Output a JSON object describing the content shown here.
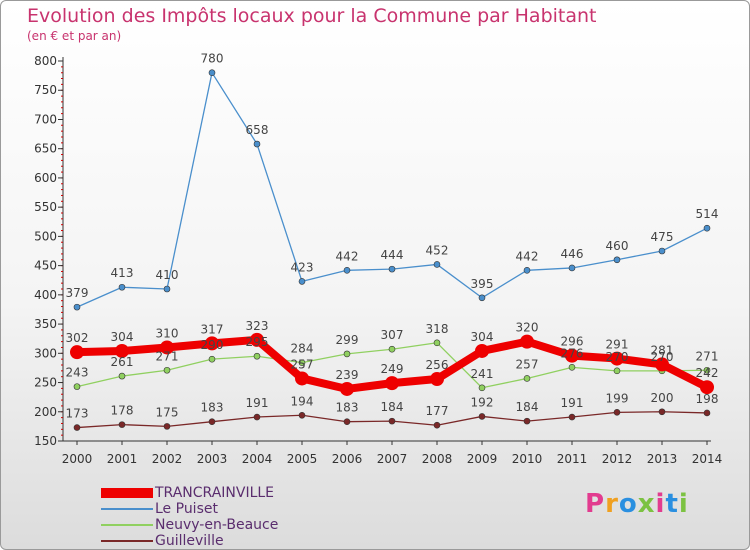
{
  "header": {
    "title": "Evolution des Impôts locaux pour la Commune par Habitant",
    "subtitle": "(en € et par an)"
  },
  "brand": {
    "text": "Proxiti",
    "letters": [
      {
        "ch": "P",
        "color": "#e23b8f"
      },
      {
        "ch": "r",
        "color": "#f0a020"
      },
      {
        "ch": "o",
        "color": "#2a8fe0"
      },
      {
        "ch": "x",
        "color": "#7cc242"
      },
      {
        "ch": "i",
        "color": "#e23b8f"
      },
      {
        "ch": "t",
        "color": "#2a8fe0"
      },
      {
        "ch": "i",
        "color": "#7cc242"
      }
    ]
  },
  "chart_data": {
    "type": "line",
    "title": "Evolution des Impôts locaux pour la Commune par Habitant",
    "subtitle": "(en € et par an)",
    "xlabel": "",
    "ylabel": "",
    "x": [
      "2000",
      "2001",
      "2002",
      "2003",
      "2004",
      "2005",
      "2006",
      "2007",
      "2008",
      "2009",
      "2010",
      "2011",
      "2012",
      "2013",
      "2014"
    ],
    "ylim": [
      150,
      800
    ],
    "yticks": [
      150,
      200,
      250,
      300,
      350,
      400,
      450,
      500,
      550,
      600,
      650,
      700,
      750,
      800
    ],
    "grid": false,
    "legend_position": "bottom-left",
    "series": [
      {
        "name": "TRANCRAINVILLE",
        "color": "#ee0000",
        "values": [
          302,
          304,
          310,
          317,
          323,
          257,
          239,
          249,
          256,
          304,
          320,
          296,
          291,
          281,
          242
        ]
      },
      {
        "name": "Le Puiset",
        "color": "#4a8fcc",
        "values": [
          379,
          413,
          410,
          780,
          658,
          423,
          442,
          444,
          452,
          395,
          442,
          446,
          460,
          475,
          514
        ]
      },
      {
        "name": "Neuvy-en-Beauce",
        "color": "#90d060",
        "values": [
          243,
          261,
          271,
          290,
          295,
          284,
          299,
          307,
          318,
          241,
          257,
          276,
          270,
          270,
          271
        ]
      },
      {
        "name": "Guilleville",
        "color": "#7a2828",
        "values": [
          173,
          178,
          175,
          183,
          191,
          194,
          183,
          184,
          177,
          192,
          184,
          191,
          199,
          200,
          198
        ]
      }
    ]
  }
}
